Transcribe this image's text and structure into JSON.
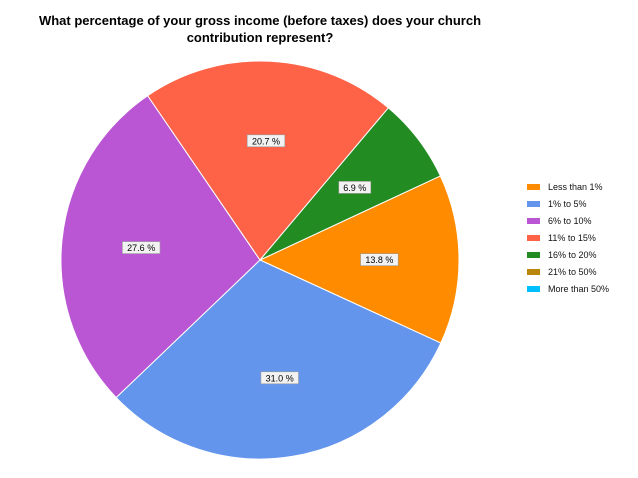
{
  "chart_data": {
    "type": "pie",
    "title_lines": [
      "What percentage of your gross income (before taxes) does your church",
      "contribution represent?"
    ],
    "start_angle_deg": 65,
    "slices": [
      {
        "name": "Less than 1%",
        "value": 13.8,
        "label": "13.8 %",
        "color": "#ff8c00"
      },
      {
        "name": "1% to 5%",
        "value": 31.0,
        "label": "31.0 %",
        "color": "#6495ed"
      },
      {
        "name": "6% to 10%",
        "value": 27.6,
        "label": "27.6 %",
        "color": "#ba55d3"
      },
      {
        "name": "11% to 15%",
        "value": 20.7,
        "label": "20.7 %",
        "color": "#ff6347"
      },
      {
        "name": "16% to 20%",
        "value": 6.9,
        "label": "6.9 %",
        "color": "#228b22"
      },
      {
        "name": "21% to 50%",
        "value": 0,
        "label": "",
        "color": "#b8860b"
      },
      {
        "name": "More than 50%",
        "value": 0,
        "label": "",
        "color": "#00bfff"
      }
    ],
    "legend_position": "right"
  }
}
